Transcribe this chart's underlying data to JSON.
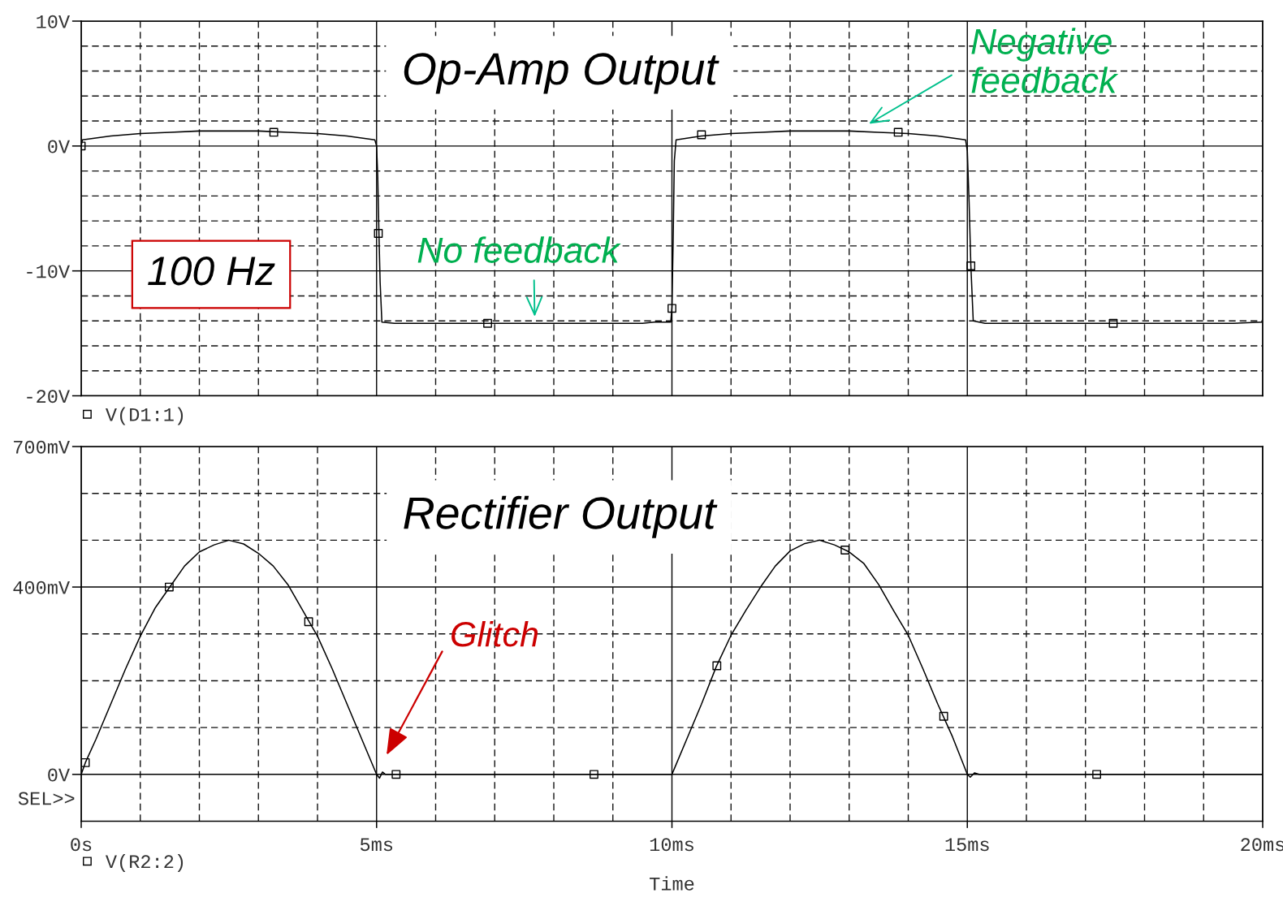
{
  "chart_data": [
    {
      "type": "line",
      "title": "Op-Amp Output",
      "x": [
        0,
        0.02,
        0.5,
        1,
        1.5,
        2,
        2.5,
        3,
        3.5,
        4,
        4.5,
        4.97,
        5,
        5.02,
        5.04,
        5.06,
        5.09,
        5.3,
        5.5,
        6,
        6.5,
        7,
        7.5,
        8,
        8.5,
        9,
        9.5,
        9.7,
        9.98,
        10,
        10.02,
        10.04,
        10.07,
        10.5,
        11,
        11.5,
        12,
        12.5,
        13,
        13.5,
        14,
        14.5,
        14.97,
        15,
        15.03,
        15.06,
        15.1,
        15.3,
        15.5,
        16,
        16.5,
        17,
        17.5,
        18,
        18.5,
        19,
        19.5,
        20
      ],
      "series": [
        {
          "name": "V(D1:1)",
          "color": "#000000",
          "values": [
            0,
            0.5,
            0.8,
            1.0,
            1.1,
            1.2,
            1.2,
            1.2,
            1.1,
            1.0,
            0.8,
            0.5,
            0,
            -2.5,
            -7.0,
            -10.9,
            -14.1,
            -14.2,
            -14.2,
            -14.2,
            -14.2,
            -14.2,
            -14.2,
            -14.2,
            -14.2,
            -14.2,
            -14.2,
            -14.1,
            -14.1,
            -12.9,
            -7.7,
            -1.2,
            0.5,
            0.8,
            1.0,
            1.1,
            1.2,
            1.2,
            1.2,
            1.1,
            1.0,
            0.8,
            0.5,
            -0.4,
            -4.5,
            -9.6,
            -14.0,
            -14.2,
            -14.2,
            -14.2,
            -14.2,
            -14.2,
            -14.2,
            -14.2,
            -14.2,
            -14.2,
            -14.2,
            -14.1
          ]
        },
        {
          "type": "scatter",
          "marker": "square",
          "color": "#000000",
          "x": [
            0,
            3.26,
            5.03,
            6.88,
            10.0,
            10.5,
            13.83,
            15.06,
            17.47
          ],
          "values": [
            0,
            1.1,
            -7.0,
            -14.2,
            -13.0,
            0.9,
            1.1,
            -9.6,
            -14.2
          ]
        }
      ],
      "xlim": [
        0,
        20
      ],
      "xticks": [
        0,
        {
          "value": 1,
          "label": null
        },
        {
          "value": 2,
          "label": null
        },
        {
          "value": 3,
          "label": null
        },
        {
          "value": 4,
          "label": null
        },
        5,
        {
          "value": 6,
          "label": null
        },
        {
          "value": 7,
          "label": null
        },
        {
          "value": 8,
          "label": null
        },
        {
          "value": 9,
          "label": null
        },
        10,
        {
          "value": 11,
          "label": null
        },
        {
          "value": 12,
          "label": null
        },
        {
          "value": 13,
          "label": null
        },
        {
          "value": 14,
          "label": null
        },
        15,
        {
          "value": 16,
          "label": null
        },
        {
          "value": 17,
          "label": null
        },
        {
          "value": 18,
          "label": null
        },
        {
          "value": 19,
          "label": null
        },
        20
      ],
      "ylim": [
        -20,
        10
      ],
      "yticks": [
        {
          "value": 10,
          "label": "10V"
        },
        {
          "value": 8,
          "label": null
        },
        {
          "value": 6,
          "label": null
        },
        {
          "value": 4,
          "label": null
        },
        {
          "value": 2,
          "label": null
        },
        {
          "value": 0,
          "label": "0V"
        },
        {
          "value": -2,
          "label": null
        },
        {
          "value": -4,
          "label": null
        },
        {
          "value": -6,
          "label": null
        },
        {
          "value": -8,
          "label": null
        },
        {
          "value": -10,
          "label": "-10V"
        },
        {
          "value": -12,
          "label": null
        },
        {
          "value": -14,
          "label": null
        },
        {
          "value": -16,
          "label": null
        },
        {
          "value": -18,
          "label": null
        },
        {
          "value": -20,
          "label": "-20V"
        }
      ],
      "tick_labels": "y",
      "grid": true,
      "legend": "bottom left",
      "annotations": [
        "100 Hz",
        "No feedback",
        "Negative\nfeedback"
      ]
    },
    {
      "type": "line",
      "title": "Rectifier Output",
      "xlabel": "Time",
      "x": [
        0,
        0.07,
        0.25,
        0.5,
        0.75,
        1,
        1.25,
        1.5,
        1.75,
        2,
        2.25,
        2.5,
        2.75,
        3,
        3.25,
        3.5,
        3.75,
        4,
        4.25,
        4.5,
        4.75,
        5,
        5.05,
        5.1,
        5.15,
        5.5,
        6,
        6.5,
        7,
        7.5,
        8,
        8.5,
        9,
        9.5,
        10,
        10.05,
        10.25,
        10.5,
        10.75,
        11,
        11.25,
        11.5,
        11.75,
        12,
        12.25,
        12.5,
        12.75,
        13,
        13.25,
        13.5,
        13.75,
        14,
        14.25,
        14.5,
        14.75,
        15,
        15.05,
        15.12,
        15.2,
        15.5,
        16,
        16.5,
        17,
        17.5,
        18,
        18.5,
        19,
        19.5,
        20
      ],
      "series": [
        {
          "name": "V(R2:2)",
          "color": "#000000",
          "values": [
            0,
            25,
            75,
            150,
            225,
            295,
            355,
            400,
            445,
            475,
            490,
            500,
            492,
            472,
            445,
            405,
            350,
            295,
            225,
            150,
            75,
            0,
            -8,
            5,
            0,
            0,
            0,
            0,
            0,
            0,
            0,
            0,
            0,
            0,
            0,
            15,
            75,
            150,
            230,
            297,
            350,
            400,
            445,
            477,
            493,
            500,
            490,
            475,
            450,
            405,
            350,
            297,
            225,
            150,
            80,
            0,
            -6,
            3,
            0,
            0,
            0,
            0,
            0,
            0,
            0,
            0,
            0,
            0,
            0
          ]
        },
        {
          "type": "scatter",
          "marker": "square",
          "color": "#000000",
          "x": [
            0.07,
            1.49,
            3.85,
            5.33,
            8.68,
            10.76,
            12.93,
            14.6,
            17.19
          ],
          "values": [
            25,
            400,
            326,
            0,
            0,
            232,
            479,
            124,
            0
          ]
        }
      ],
      "xlim": [
        0,
        20
      ],
      "xticks": [
        {
          "value": 0,
          "label": "0s"
        },
        {
          "value": 1,
          "label": null
        },
        {
          "value": 2,
          "label": null
        },
        {
          "value": 3,
          "label": null
        },
        {
          "value": 4,
          "label": null
        },
        {
          "value": 5,
          "label": "5ms"
        },
        {
          "value": 6,
          "label": null
        },
        {
          "value": 7,
          "label": null
        },
        {
          "value": 8,
          "label": null
        },
        {
          "value": 9,
          "label": null
        },
        {
          "value": 10,
          "label": "10ms"
        },
        {
          "value": 11,
          "label": null
        },
        {
          "value": 12,
          "label": null
        },
        {
          "value": 13,
          "label": null
        },
        {
          "value": 14,
          "label": null
        },
        {
          "value": 15,
          "label": "15ms"
        },
        {
          "value": 16,
          "label": null
        },
        {
          "value": 17,
          "label": null
        },
        {
          "value": 18,
          "label": null
        },
        {
          "value": 19,
          "label": null
        },
        {
          "value": 20,
          "label": "20ms"
        }
      ],
      "ylim": [
        -100,
        700
      ],
      "yticks": [
        {
          "value": 700,
          "label": "700mV"
        },
        {
          "value": 600,
          "label": null
        },
        {
          "value": 500,
          "label": null
        },
        {
          "value": 400,
          "label": "400mV"
        },
        {
          "value": 300,
          "label": null
        },
        {
          "value": 200,
          "label": null
        },
        {
          "value": 100,
          "label": null
        },
        {
          "value": 0,
          "label": "0V"
        }
      ],
      "grid": true,
      "legend": "bottom left",
      "annotations": [
        "Glitch",
        "SEL>>"
      ]
    }
  ]
}
